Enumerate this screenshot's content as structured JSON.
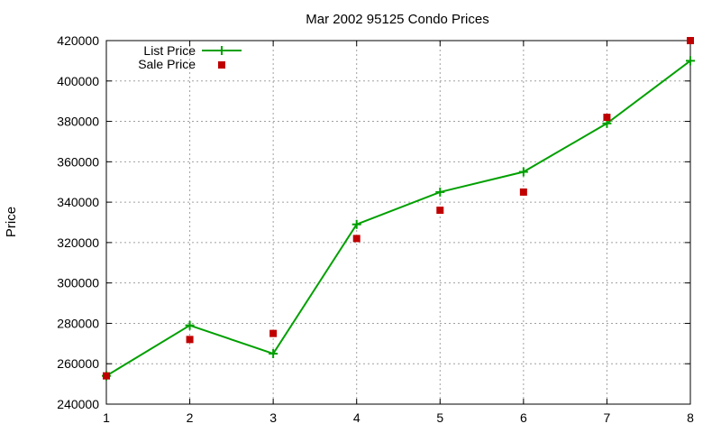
{
  "chart_data": {
    "type": "line",
    "title": "Mar 2002 95125 Condo Prices",
    "xlabel": "",
    "ylabel": "Price",
    "xlim": [
      1,
      8
    ],
    "ylim": [
      240000,
      420000
    ],
    "x_ticks": [
      1,
      2,
      3,
      4,
      5,
      6,
      7,
      8
    ],
    "y_ticks": [
      240000,
      260000,
      280000,
      300000,
      320000,
      340000,
      360000,
      380000,
      400000,
      420000
    ],
    "grid": true,
    "legend_position": "top-left",
    "series": [
      {
        "name": "List Price",
        "style": "line-with-plus-markers",
        "color": "#00a000",
        "x": [
          1,
          2,
          3,
          4,
          5,
          6,
          7,
          8
        ],
        "values": [
          254000,
          279000,
          265000,
          329000,
          345000,
          355000,
          379000,
          410000
        ]
      },
      {
        "name": "Sale Price",
        "style": "square-markers",
        "color": "#c00000",
        "x": [
          1,
          2,
          3,
          4,
          5,
          6,
          7,
          8
        ],
        "values": [
          254000,
          272000,
          275000,
          322000,
          336000,
          345000,
          382000,
          420000
        ]
      }
    ]
  }
}
